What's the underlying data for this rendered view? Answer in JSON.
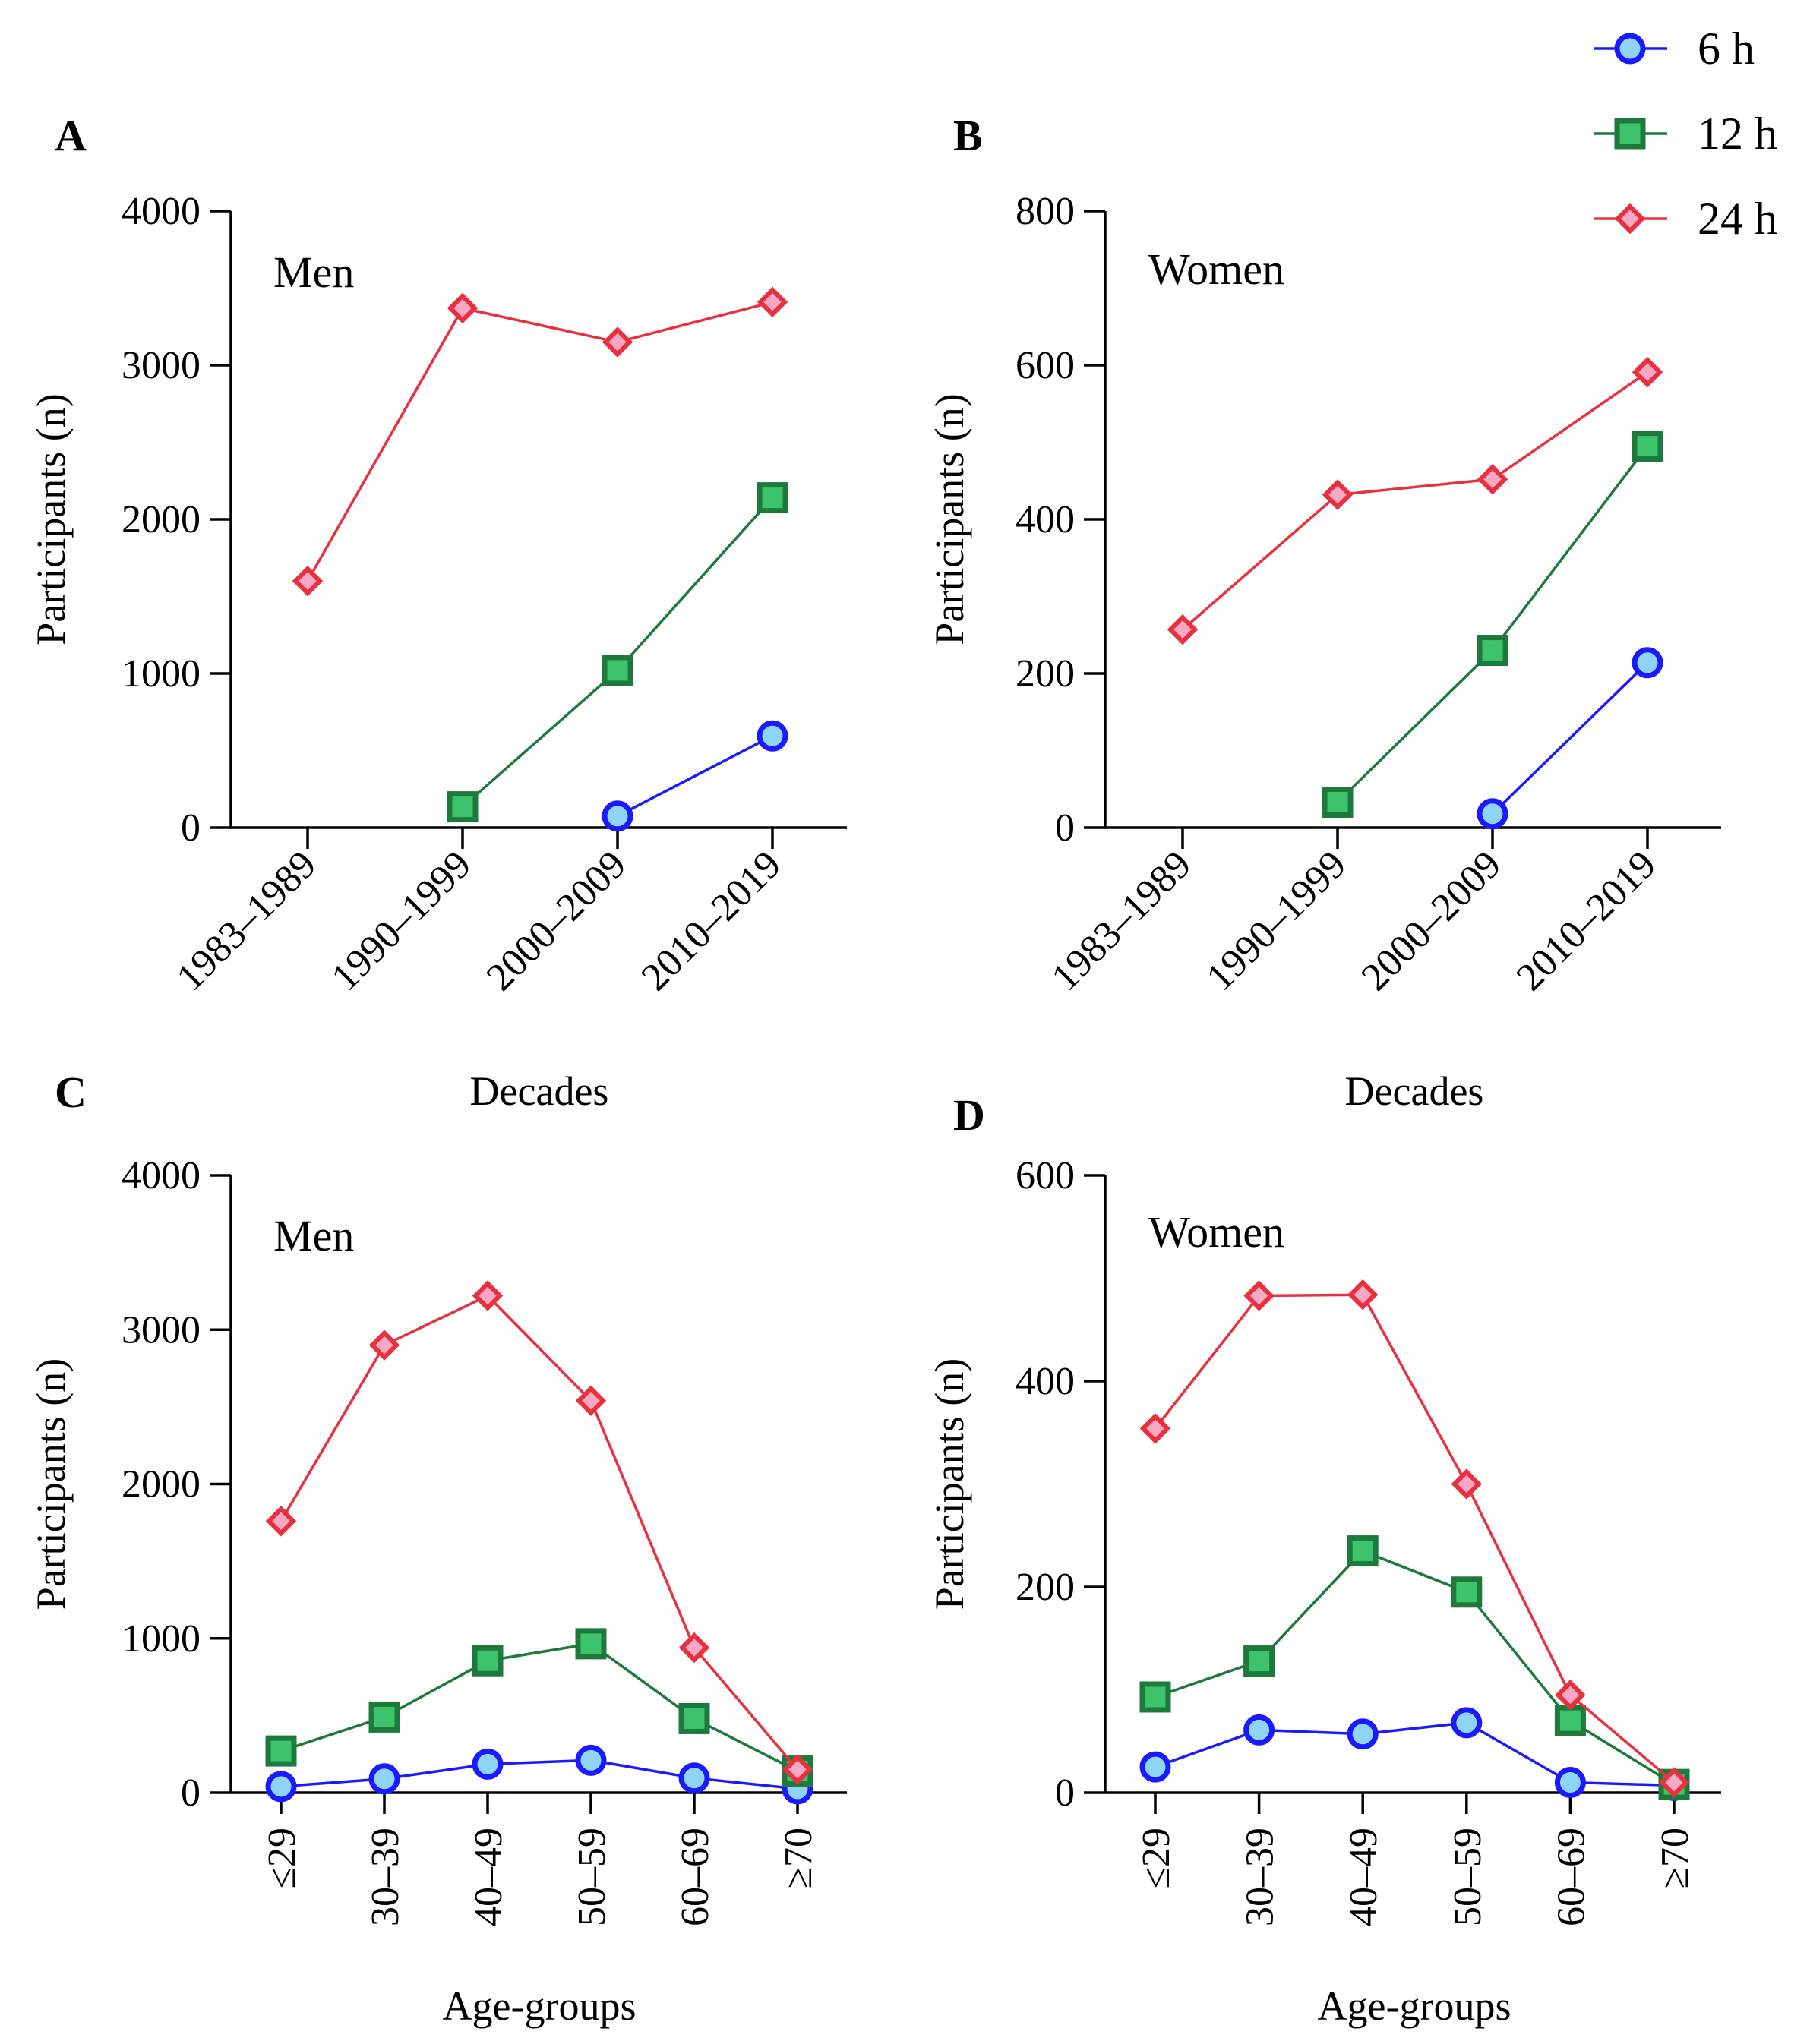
{
  "legend": [
    {
      "label": "6 h",
      "color": "#1a1aff",
      "fill": "#8fd3f5",
      "marker": "circle"
    },
    {
      "label": "12 h",
      "color": "#1e7a3c",
      "fill": "#3cc36b",
      "marker": "square"
    },
    {
      "label": "24 h",
      "color": "#e8303f",
      "fill": "#f7a8c5",
      "marker": "diamond"
    }
  ],
  "chart_data": [
    {
      "panel": "A",
      "type": "line",
      "group": "Men",
      "categories": [
        "1983–1989",
        "1990–1999",
        "2000–2009",
        "2010–2019"
      ],
      "xlabel": "Decades",
      "ylabel": "Participants (n)",
      "ylim": [
        0,
        4000
      ],
      "yticks": [
        0,
        1000,
        2000,
        3000,
        4000
      ],
      "series": [
        {
          "name": "6 h",
          "values": [
            null,
            null,
            75,
            595
          ]
        },
        {
          "name": "12 h",
          "values": [
            null,
            135,
            1020,
            2140
          ]
        },
        {
          "name": "24 h",
          "values": [
            1600,
            3370,
            3150,
            3410
          ]
        }
      ]
    },
    {
      "panel": "B",
      "type": "line",
      "group": "Women",
      "categories": [
        "1983–1989",
        "1990–1999",
        "2000–2009",
        "2010–2019"
      ],
      "xlabel": "Decades",
      "ylabel": "Participants (n)",
      "ylim": [
        0,
        800
      ],
      "yticks": [
        0,
        200,
        400,
        600,
        800
      ],
      "series": [
        {
          "name": "6 h",
          "values": [
            null,
            null,
            18,
            214
          ]
        },
        {
          "name": "12 h",
          "values": [
            null,
            33,
            230,
            495
          ]
        },
        {
          "name": "24 h",
          "values": [
            257,
            432,
            452,
            591
          ]
        }
      ]
    },
    {
      "panel": "C",
      "type": "line",
      "group": "Men",
      "categories": [
        "≤29",
        "30–39",
        "40–49",
        "50–59",
        "60–69",
        "≥70"
      ],
      "xlabel": "Age-groups",
      "ylabel": "Participants (n)",
      "ylim": [
        0,
        4000
      ],
      "yticks": [
        0,
        1000,
        2000,
        3000,
        4000
      ],
      "series": [
        {
          "name": "6 h",
          "values": [
            40,
            90,
            185,
            210,
            95,
            25
          ]
        },
        {
          "name": "12 h",
          "values": [
            270,
            490,
            855,
            965,
            480,
            140
          ]
        },
        {
          "name": "24 h",
          "values": [
            1760,
            2900,
            3220,
            2540,
            940,
            150
          ]
        }
      ]
    },
    {
      "panel": "D",
      "type": "line",
      "group": "Women",
      "categories": [
        "≤29",
        "30–39",
        "40–49",
        "50–59",
        "60–69",
        "≥70"
      ],
      "xlabel": "Age-groups",
      "ylabel": "Participants (n)",
      "ylim": [
        0,
        600
      ],
      "yticks": [
        0,
        200,
        400,
        600
      ],
      "series": [
        {
          "name": "6 h",
          "values": [
            25,
            61,
            57,
            68,
            10,
            7
          ]
        },
        {
          "name": "12 h",
          "values": [
            93,
            128,
            235,
            195,
            70,
            8
          ]
        },
        {
          "name": "24 h",
          "values": [
            354,
            483,
            484,
            300,
            95,
            10
          ]
        }
      ]
    }
  ]
}
